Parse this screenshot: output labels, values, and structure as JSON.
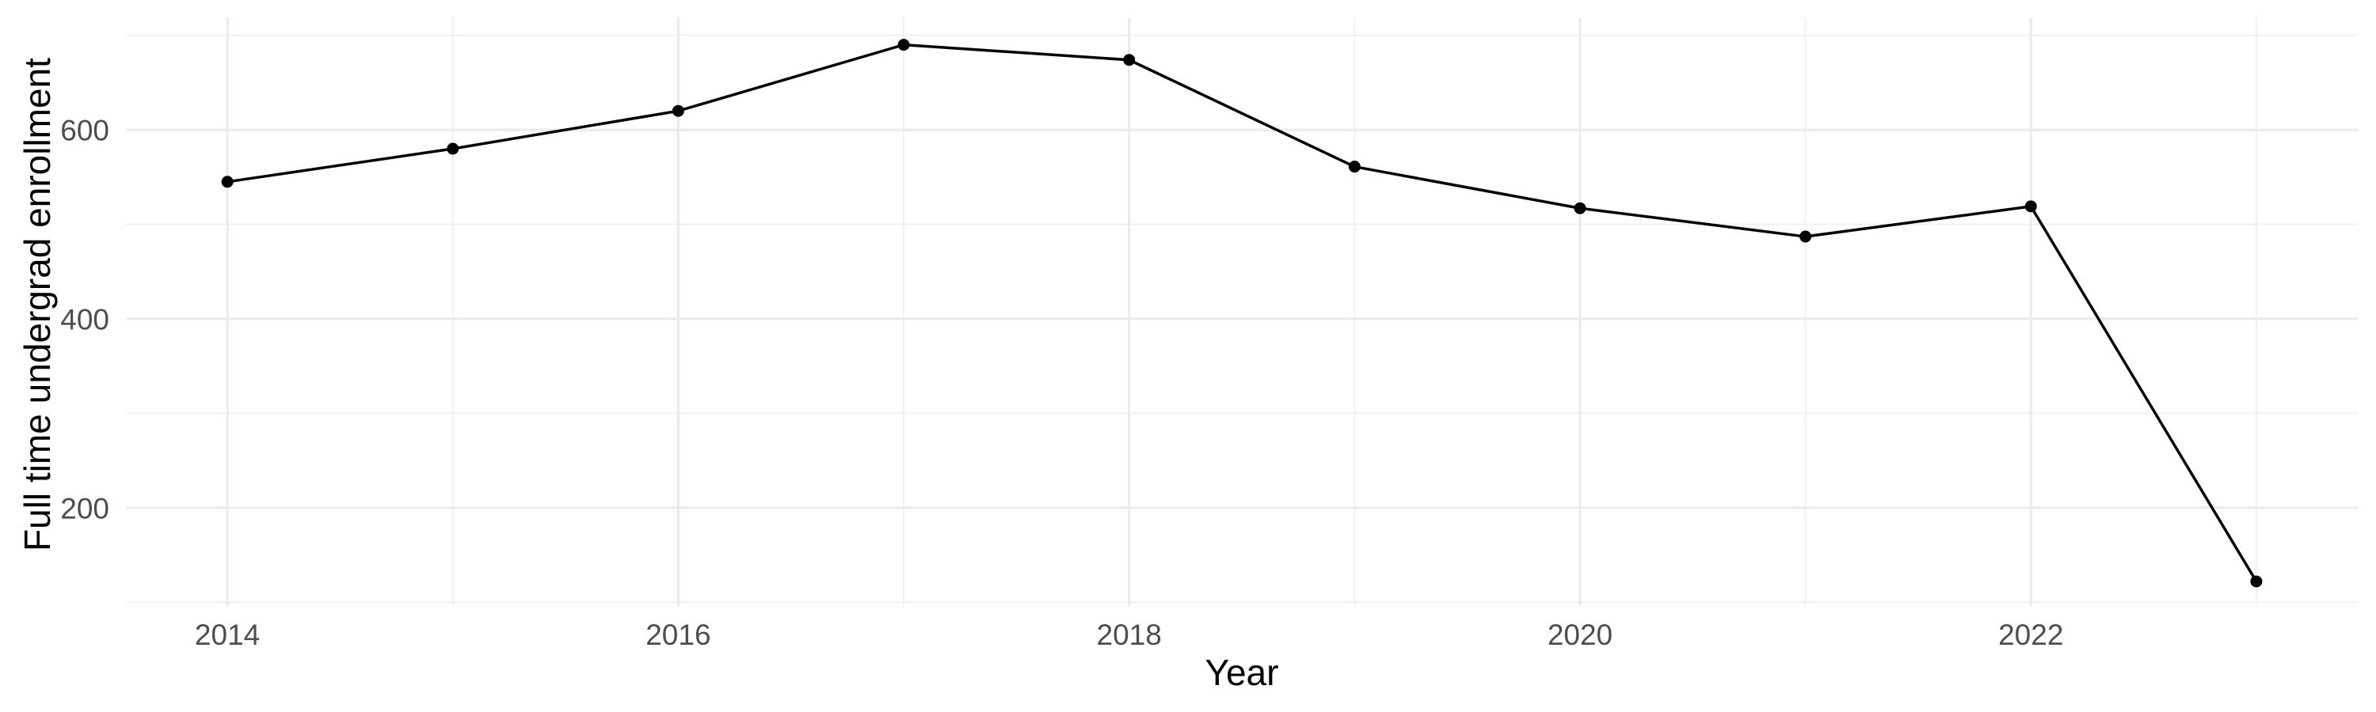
{
  "chart_data": {
    "type": "line",
    "title": "",
    "xlabel": "Year",
    "ylabel": "Full time undergrad enrollment",
    "series": [
      {
        "name": "Full time undergrad enrollment",
        "x": [
          2014,
          2015,
          2016,
          2017,
          2018,
          2019,
          2020,
          2021,
          2022,
          2023
        ],
        "values": [
          545,
          580,
          620,
          690,
          674,
          561,
          517,
          487,
          519,
          122
        ]
      }
    ],
    "xlim": [
      2013.55,
      2023.45
    ],
    "ylim": [
      96,
      719
    ],
    "x_ticks": [
      2014,
      2016,
      2018,
      2020,
      2022
    ],
    "x_tick_labels": [
      "2014",
      "2016",
      "2018",
      "2020",
      "2022"
    ],
    "x_minor_gridlines": [
      2015,
      2017,
      2019,
      2021,
      2023
    ],
    "y_ticks": [
      200,
      400,
      600
    ],
    "y_tick_labels": [
      "200",
      "400",
      "600"
    ],
    "y_minor_gridlines": [
      100,
      300,
      500,
      700
    ],
    "grid": true,
    "legend": false,
    "marker": "filled-circle",
    "line_width": 3.5,
    "point_radius": 7.5,
    "colors": {
      "line": "#000000",
      "point": "#000000",
      "grid_major": "#EBEBEB",
      "grid_minor": "#EFEFEF",
      "tick_label": "#4D4D4D",
      "axis_title": "#000000",
      "background": "#FFFFFF"
    }
  }
}
